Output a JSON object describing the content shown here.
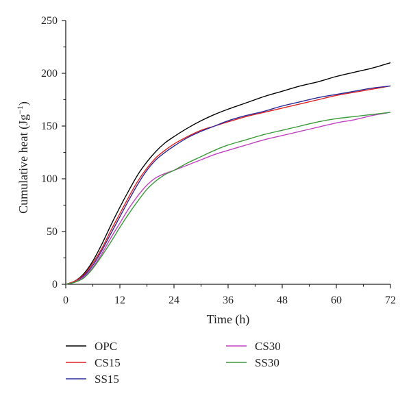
{
  "chart_data": {
    "type": "line",
    "title": "",
    "xlabel": "Time (h)",
    "ylabel": "Cumulative heat (Jg",
    "ylabel_sup": "−1",
    "ylabel_close": ")",
    "xlim": [
      0,
      72
    ],
    "ylim": [
      0,
      250
    ],
    "x_ticks": [
      0,
      12,
      24,
      36,
      48,
      60,
      72
    ],
    "y_ticks": [
      0,
      50,
      100,
      150,
      200,
      250
    ],
    "grid": false,
    "legend": "bottom",
    "x": [
      0,
      2,
      4,
      6,
      8,
      10,
      12,
      14,
      16,
      18,
      20,
      22,
      24,
      27,
      30,
      33,
      36,
      40,
      44,
      48,
      52,
      56,
      60,
      64,
      68,
      72
    ],
    "series": [
      {
        "name": "OPC",
        "color": "#000000",
        "values": [
          0,
          3,
          10,
          22,
          38,
          56,
          73,
          89,
          104,
          116,
          126,
          134,
          140,
          148,
          155,
          161,
          166,
          172,
          178,
          183,
          188,
          192,
          197,
          201,
          205,
          210
        ]
      },
      {
        "name": "CS15",
        "color": "#e02020",
        "values": [
          0,
          3,
          9,
          20,
          34,
          51,
          67,
          83,
          98,
          110,
          120,
          127,
          133,
          140,
          146,
          150,
          154,
          159,
          163,
          167,
          171,
          175,
          179,
          182,
          185,
          188
        ]
      },
      {
        "name": "SS15",
        "color": "#2a2a9a",
        "values": [
          0,
          2,
          8,
          18,
          32,
          48,
          64,
          80,
          95,
          108,
          118,
          125,
          131,
          139,
          145,
          150,
          155,
          160,
          164,
          169,
          173,
          177,
          180,
          183,
          186,
          188
        ]
      },
      {
        "name": "CS30",
        "color": "#c040c0",
        "values": [
          0,
          2,
          7,
          16,
          29,
          44,
          58,
          72,
          84,
          94,
          101,
          105,
          108,
          113,
          118,
          123,
          127,
          132,
          137,
          141,
          145,
          149,
          153,
          156,
          160,
          163
        ]
      },
      {
        "name": "SS30",
        "color": "#3a9a3a",
        "values": [
          0,
          2,
          6,
          15,
          27,
          40,
          54,
          67,
          79,
          90,
          98,
          104,
          108,
          115,
          121,
          127,
          132,
          137,
          142,
          146,
          150,
          154,
          157,
          159,
          161,
          163
        ]
      }
    ]
  }
}
